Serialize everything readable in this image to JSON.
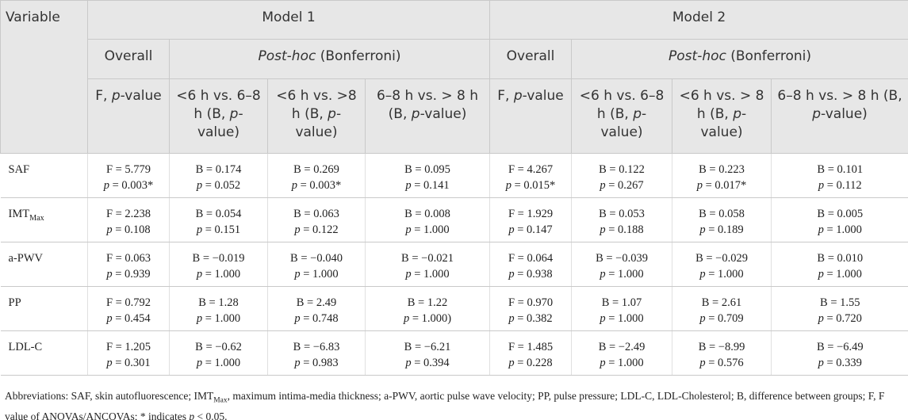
{
  "table": {
    "header": {
      "variable": "Variable",
      "model1": "Model 1",
      "model2": "Model 2",
      "overall": [
        "Overall",
        "Overall"
      ],
      "posthoc": [
        [
          "Post-hoc",
          " (Bonferroni)"
        ],
        [
          "Post-hoc",
          " (Bonferroni)"
        ]
      ],
      "stats": [
        [
          "F, ",
          "p",
          "-value"
        ],
        [
          "<6 h vs. 6–8 h (B, ",
          "p",
          "-value)"
        ],
        [
          "<6 h vs. >8 h (B, ",
          "p",
          "-value)"
        ],
        [
          "6–8 h vs. > 8 h (B, ",
          "p",
          "-value)"
        ],
        [
          "F, ",
          "p",
          "-value"
        ],
        [
          "<6 h vs. 6–8 h (B, ",
          "p",
          "-value)"
        ],
        [
          "<6 h vs. > 8 h (B, ",
          "p",
          "-value)"
        ],
        [
          "6–8 h vs. > 8 h (B, ",
          "p",
          "-value)"
        ]
      ]
    },
    "rows": [
      {
        "variable": [
          "SAF"
        ],
        "cells": [
          [
            "F = 5.779",
            "p = 0.003*"
          ],
          [
            "B = 0.174",
            "p = 0.052"
          ],
          [
            "B = 0.269",
            "p = 0.003*"
          ],
          [
            "B = 0.095",
            "p = 0.141"
          ],
          [
            "F = 4.267",
            "p = 0.015*"
          ],
          [
            "B = 0.122",
            "p = 0.267"
          ],
          [
            "B = 0.223",
            "p = 0.017*"
          ],
          [
            "B = 0.101",
            "p = 0.112"
          ]
        ]
      },
      {
        "variable": [
          "IMT",
          "Max"
        ],
        "cells": [
          [
            "F = 2.238",
            "p = 0.108"
          ],
          [
            "B = 0.054",
            "p = 0.151"
          ],
          [
            "B = 0.063",
            "p = 0.122"
          ],
          [
            "B = 0.008",
            "p = 1.000"
          ],
          [
            "F = 1.929",
            "p = 0.147"
          ],
          [
            "B = 0.053",
            "p = 0.188"
          ],
          [
            "B = 0.058",
            "p = 0.189"
          ],
          [
            "B = 0.005",
            "p = 1.000"
          ]
        ]
      },
      {
        "variable": [
          "a-PWV"
        ],
        "cells": [
          [
            "F = 0.063",
            "p = 0.939"
          ],
          [
            "B = −0.019",
            "p = 1.000"
          ],
          [
            "B = −0.040",
            "p = 1.000"
          ],
          [
            "B = −0.021",
            "p = 1.000"
          ],
          [
            "F = 0.064",
            "p = 0.938"
          ],
          [
            "B = −0.039",
            "p = 1.000"
          ],
          [
            "B = −0.029",
            "p = 1.000"
          ],
          [
            "B = 0.010",
            "p = 1.000"
          ]
        ]
      },
      {
        "variable": [
          "PP"
        ],
        "cells": [
          [
            "F = 0.792",
            "p = 0.454"
          ],
          [
            "B = 1.28",
            "p = 1.000"
          ],
          [
            "B = 2.49",
            "p = 0.748"
          ],
          [
            "B = 1.22",
            "p = 1.000)"
          ],
          [
            "F = 0.970",
            "p = 0.382"
          ],
          [
            "B = 1.07",
            "p = 1.000"
          ],
          [
            "B = 2.61",
            "p = 0.709"
          ],
          [
            "B = 1.55",
            "p = 0.720"
          ]
        ]
      },
      {
        "variable": [
          "LDL-C"
        ],
        "cells": [
          [
            "F = 1.205",
            "p = 0.301"
          ],
          [
            "B = −0.62",
            "p = 1.000"
          ],
          [
            "B = −6.83",
            "p = 0.983"
          ],
          [
            "B = −6.21",
            "p = 0.394"
          ],
          [
            "F = 1.485",
            "p = 0.228"
          ],
          [
            "B = −2.49",
            "p = 1.000"
          ],
          [
            "B = −8.99",
            "p = 0.576"
          ],
          [
            "B = −6.49",
            "p = 0.339"
          ]
        ]
      }
    ]
  },
  "footnote": [
    "Abbreviations: SAF, skin autofluorescence; IMT",
    "Max",
    ", maximum intima-media thickness; a-PWV, aortic pulse wave velocity; PP, pulse pressure; LDL-C, LDL-Cholesterol; B, difference between groups; F, F value of ANOVAs/ANCOVAs; * indicates ",
    "p",
    " < 0.05."
  ]
}
